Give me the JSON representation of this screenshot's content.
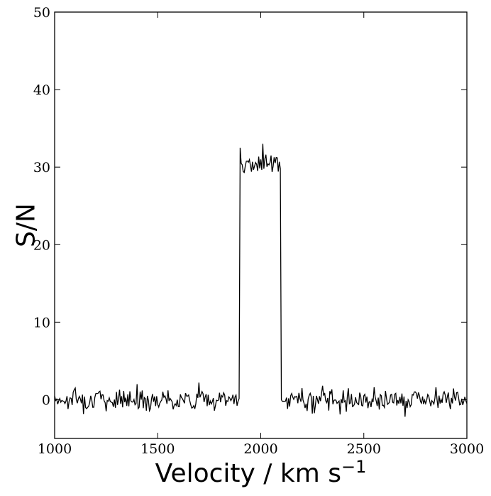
{
  "chart_data": {
    "type": "line",
    "title": "",
    "xlabel": "Velocity / km s",
    "xlabel_superscript": "−1",
    "ylabel": "S/N",
    "xlim": [
      1000,
      3000
    ],
    "ylim": [
      -5,
      50
    ],
    "xticks": [
      1000,
      1500,
      2000,
      2500,
      3000
    ],
    "yticks": [
      0,
      10,
      20,
      30,
      40,
      50
    ],
    "grid": false,
    "legend": "none",
    "line_color": "#000000",
    "series": [
      {
        "profile": {
          "noise_amplitude": 1,
          "line_start": 1900,
          "line_end": 2100,
          "line_peak": 30
        },
        "x": [
          1000,
          1050,
          1100,
          1150,
          1200,
          1250,
          1300,
          1350,
          1400,
          1450,
          1500,
          1550,
          1600,
          1650,
          1700,
          1750,
          1800,
          1850,
          1890,
          1900,
          1905,
          1950,
          2000,
          2010,
          2050,
          2080,
          2095,
          2100,
          2150,
          2200,
          2250,
          2300,
          2350,
          2400,
          2450,
          2500,
          2550,
          2600,
          2650,
          2700,
          2750,
          2800,
          2850,
          2900,
          2950,
          3000
        ],
        "y": [
          0.5,
          -0.5,
          1.5,
          -1.0,
          0.8,
          -1.5,
          1.0,
          -0.8,
          2.0,
          0.5,
          -0.6,
          1.2,
          -0.9,
          0.6,
          2.2,
          -0.7,
          0.9,
          0.2,
          -0.2,
          32.5,
          30.5,
          30.2,
          31.0,
          33.0,
          31.5,
          31.2,
          29.8,
          0.0,
          0.8,
          1.5,
          -1.8,
          1.8,
          -0.6,
          1.2,
          -0.8,
          0.5,
          1.6,
          -1.0,
          0.7,
          -2.2,
          1.0,
          -0.5,
          1.6,
          -0.4,
          0.9,
          -0.5
        ]
      }
    ]
  }
}
